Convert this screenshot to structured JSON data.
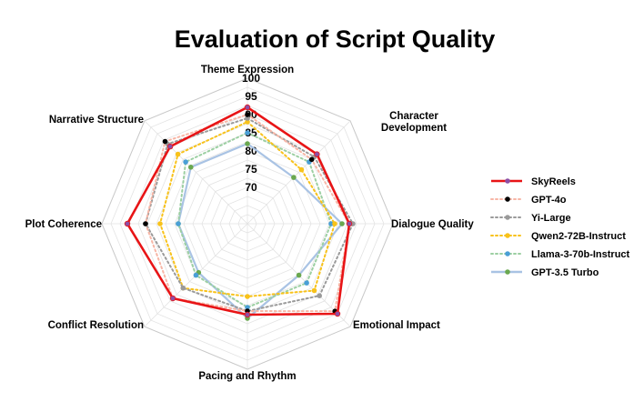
{
  "chart_data": {
    "type": "radar",
    "title": "Evaluation of Script Quality",
    "axes": [
      "Theme Expression",
      "Character Development",
      "Dialogue Quality",
      "Emotional Impact",
      "Pacing and Rhythm",
      "Conflict Resolution",
      "Plot Coherence",
      "Narrative Structure"
    ],
    "axis_label_lines": [
      [
        "Theme Expression"
      ],
      [
        "Character",
        "Development"
      ],
      [
        "Dialogue Quality"
      ],
      [
        "Emotional Impact"
      ],
      [
        "Pacing and Rhythm"
      ],
      [
        "Conflict Resolution"
      ],
      [
        "Plot Coherence"
      ],
      [
        "Narrative Structure"
      ]
    ],
    "rmin": 60,
    "rmax": 100,
    "ticks": [
      70,
      75,
      80,
      85,
      90,
      95,
      100
    ],
    "grid": true,
    "legend_position": "right",
    "series": [
      {
        "name": "SkyReels",
        "color": "#e81416",
        "line": "solid",
        "marker_color": "#8c4fa6",
        "values": [
          92,
          87,
          88,
          95,
          85,
          89,
          93,
          90
        ]
      },
      {
        "name": "GPT-4o",
        "color": "#f7b6a6",
        "line": "dotted",
        "marker_color": "#000000",
        "values": [
          90,
          85,
          88,
          94,
          84,
          89,
          88,
          92
        ]
      },
      {
        "name": "Yi-Large",
        "color": "#9a9a9a",
        "line": "dotted",
        "marker_color": "#9a9a9a",
        "values": [
          89,
          86,
          89,
          88,
          84,
          85,
          88,
          91
        ]
      },
      {
        "name": "Qwen2-72B-Instruct",
        "color": "#f8c21a",
        "line": "dotted",
        "marker_color": "#f8c21a",
        "values": [
          88,
          81,
          84,
          86,
          80,
          85,
          84,
          87
        ]
      },
      {
        "name": "Llama-3-70b-Instruct",
        "color": "#9ccfa2",
        "line": "dotted",
        "marker_color": "#4a9fd6",
        "values": [
          85,
          84,
          83,
          83,
          83,
          80,
          79,
          84
        ]
      },
      {
        "name": "GPT-3.5 Turbo",
        "color": "#a9c3e4",
        "line": "solid",
        "marker_color": "#6aa84f",
        "values": [
          82,
          78,
          86,
          80,
          86,
          79,
          79,
          82
        ]
      }
    ]
  }
}
